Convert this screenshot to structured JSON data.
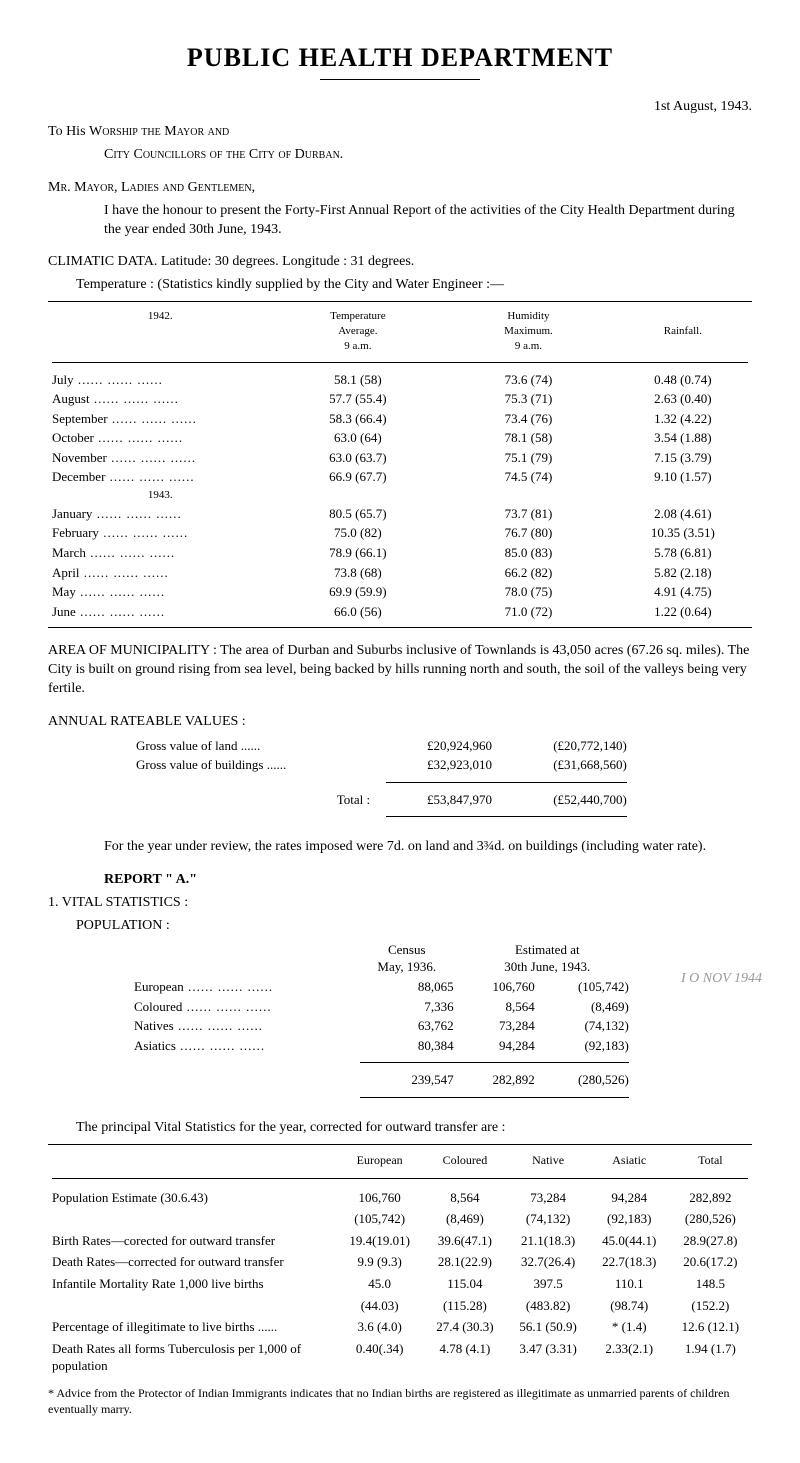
{
  "title": "PUBLIC HEALTH DEPARTMENT",
  "date": "1st August, 1943.",
  "addressee1_prefix": "To His ",
  "addressee1_sc": "Worship the Mayor and",
  "addressee2_sc": "City Councillors of the City of Durban.",
  "salutation_sc": "Mr. Mayor, Ladies and Gentlemen,",
  "intro_p1": "I have the honour to present the Forty-First Annual Report of the activities of the City Health Department during the year ended 30th June, 1943.",
  "climatic_line": "CLIMATIC DATA.  Latitude: 30 degrees.  Longitude :  31 degrees.",
  "temp_line": "Temperature :  (Statistics kindly supplied by the City and Water Engineer :—",
  "climate_years": {
    "y1": "1942.",
    "y2": "1943."
  },
  "climate_headers": {
    "c1a": "Temperature",
    "c1b": "Average.",
    "c1c": "9 a.m.",
    "c2a": "Humidity",
    "c2b": "Maximum.",
    "c2c": "9 a.m.",
    "c3": "Rainfall."
  },
  "climate_rows_1942": [
    {
      "m": "July",
      "t": "58.1 (58)",
      "h": "73.6 (74)",
      "r": "0.48 (0.74)"
    },
    {
      "m": "August",
      "t": "57.7 (55.4)",
      "h": "75.3 (71)",
      "r": "2.63 (0.40)"
    },
    {
      "m": "September",
      "t": "58.3 (66.4)",
      "h": "73.4 (76)",
      "r": "1.32 (4.22)"
    },
    {
      "m": "October",
      "t": "63.0 (64)",
      "h": "78.1 (58)",
      "r": "3.54 (1.88)"
    },
    {
      "m": "November",
      "t": "63.0 (63.7)",
      "h": "75.1 (79)",
      "r": "7.15 (3.79)"
    },
    {
      "m": "December",
      "t": "66.9 (67.7)",
      "h": "74.5 (74)",
      "r": "9.10 (1.57)"
    }
  ],
  "climate_rows_1943": [
    {
      "m": "January",
      "t": "80.5 (65.7)",
      "h": "73.7 (81)",
      "r": "2.08 (4.61)"
    },
    {
      "m": "February",
      "t": "75.0 (82)",
      "h": "76.7 (80)",
      "r": "10.35 (3.51)"
    },
    {
      "m": "March",
      "t": "78.9 (66.1)",
      "h": "85.0 (83)",
      "r": "5.78 (6.81)"
    },
    {
      "m": "April",
      "t": "73.8 (68)",
      "h": "66.2 (82)",
      "r": "5.82 (2.18)"
    },
    {
      "m": "May",
      "t": "69.9 (59.9)",
      "h": "78.0 (75)",
      "r": "4.91 (4.75)"
    },
    {
      "m": "June",
      "t": "66.0 (56)",
      "h": "71.0 (72)",
      "r": "1.22 (0.64)"
    }
  ],
  "area_p": "AREA OF MUNICIPALITY :  The area of Durban and Suburbs inclusive of Townlands is 43,050 acres (67.26 sq. miles).  The City is built on ground rising from sea level, being backed by hills running north and south, the soil of the valleys being very fertile.",
  "rateable_heading": "ANNUAL RATEABLE VALUES :",
  "rateable": {
    "rows": [
      {
        "label": "Gross value of land ......",
        "v1": "£20,924,960",
        "v2": "(£20,772,140)"
      },
      {
        "label": "Gross value of buildings ......",
        "v1": "£32,923,010",
        "v2": "(£31,668,560)"
      }
    ],
    "total_label": "Total :",
    "total_v1": "£53,847,970",
    "total_v2": "(£52,440,700)"
  },
  "rates_para": "For the year under review, the rates imposed were 7d. on land and 3¾d. on buildings (including water rate).",
  "report_heading": "REPORT \" A.\"",
  "vital_heading": "1.   VITAL STATISTICS :",
  "pop_heading": "POPULATION :",
  "pop": {
    "headers": {
      "c1a": "Census",
      "c1b": "May, 1936.",
      "c2a": "Estimated at",
      "c2b": "30th June, 1943."
    },
    "rows": [
      {
        "label": "European",
        "c": "88,065",
        "e1": "106,760",
        "e2": "(105,742)"
      },
      {
        "label": "Coloured",
        "c": "7,336",
        "e1": "8,564",
        "e2": "(8,469)"
      },
      {
        "label": "Natives",
        "c": "63,762",
        "e1": "73,284",
        "e2": "(74,132)"
      },
      {
        "label": "Asiatics",
        "c": "80,384",
        "e1": "94,284",
        "e2": "(92,183)"
      }
    ],
    "total": {
      "c": "239,547",
      "e1": "282,892",
      "e2": "(280,526)"
    }
  },
  "stamp_side": "I O NOV 1944",
  "vital_intro": "The principal Vital Statistics for the year, corrected for outward transfer are :",
  "vital": {
    "headers": [
      "European",
      "Coloured",
      "Native",
      "Asiatic",
      "Total"
    ],
    "rows": [
      {
        "label": "Population Estimate (30.6.43)",
        "v": [
          "106,760",
          "8,564",
          "73,284",
          "94,284",
          "282,892"
        ],
        "v2": [
          "(105,742)",
          "(8,469)",
          "(74,132)",
          "(92,183)",
          "(280,526)"
        ]
      },
      {
        "label": "Birth Rates—corected for outward transfer",
        "v": [
          "19.4(19.01)",
          "39.6(47.1)",
          "21.1(18.3)",
          "45.0(44.1)",
          "28.9(27.8)"
        ]
      },
      {
        "label": "Death Rates—corrected for outward transfer",
        "v": [
          "9.9 (9.3)",
          "28.1(22.9)",
          "32.7(26.4)",
          "22.7(18.3)",
          "20.6(17.2)"
        ]
      },
      {
        "label": "Infantile Mortality Rate 1,000 live births",
        "v": [
          "45.0",
          "115.04",
          "397.5",
          "110.1",
          "148.5"
        ],
        "v2": [
          "(44.03)",
          "(115.28)",
          "(483.82)",
          "(98.74)",
          "(152.2)"
        ]
      },
      {
        "label": "Percentage of illegitimate to live births ......",
        "v": [
          "3.6 (4.0)",
          "27.4 (30.3)",
          "56.1 (50.9)",
          "* (1.4)",
          "12.6 (12.1)"
        ]
      },
      {
        "label": "Death Rates all forms Tuberculosis per 1,000 of population",
        "v": [
          "0.40(.34)",
          "4.78 (4.1)",
          "3.47 (3.31)",
          "2.33(2.1)",
          "1.94 (1.7)"
        ]
      }
    ]
  },
  "footnote": "* Advice from the Protector of Indian Immigrants indicates that no Indian births are registered as illegitimate as unmarried parents of children eventually marry."
}
